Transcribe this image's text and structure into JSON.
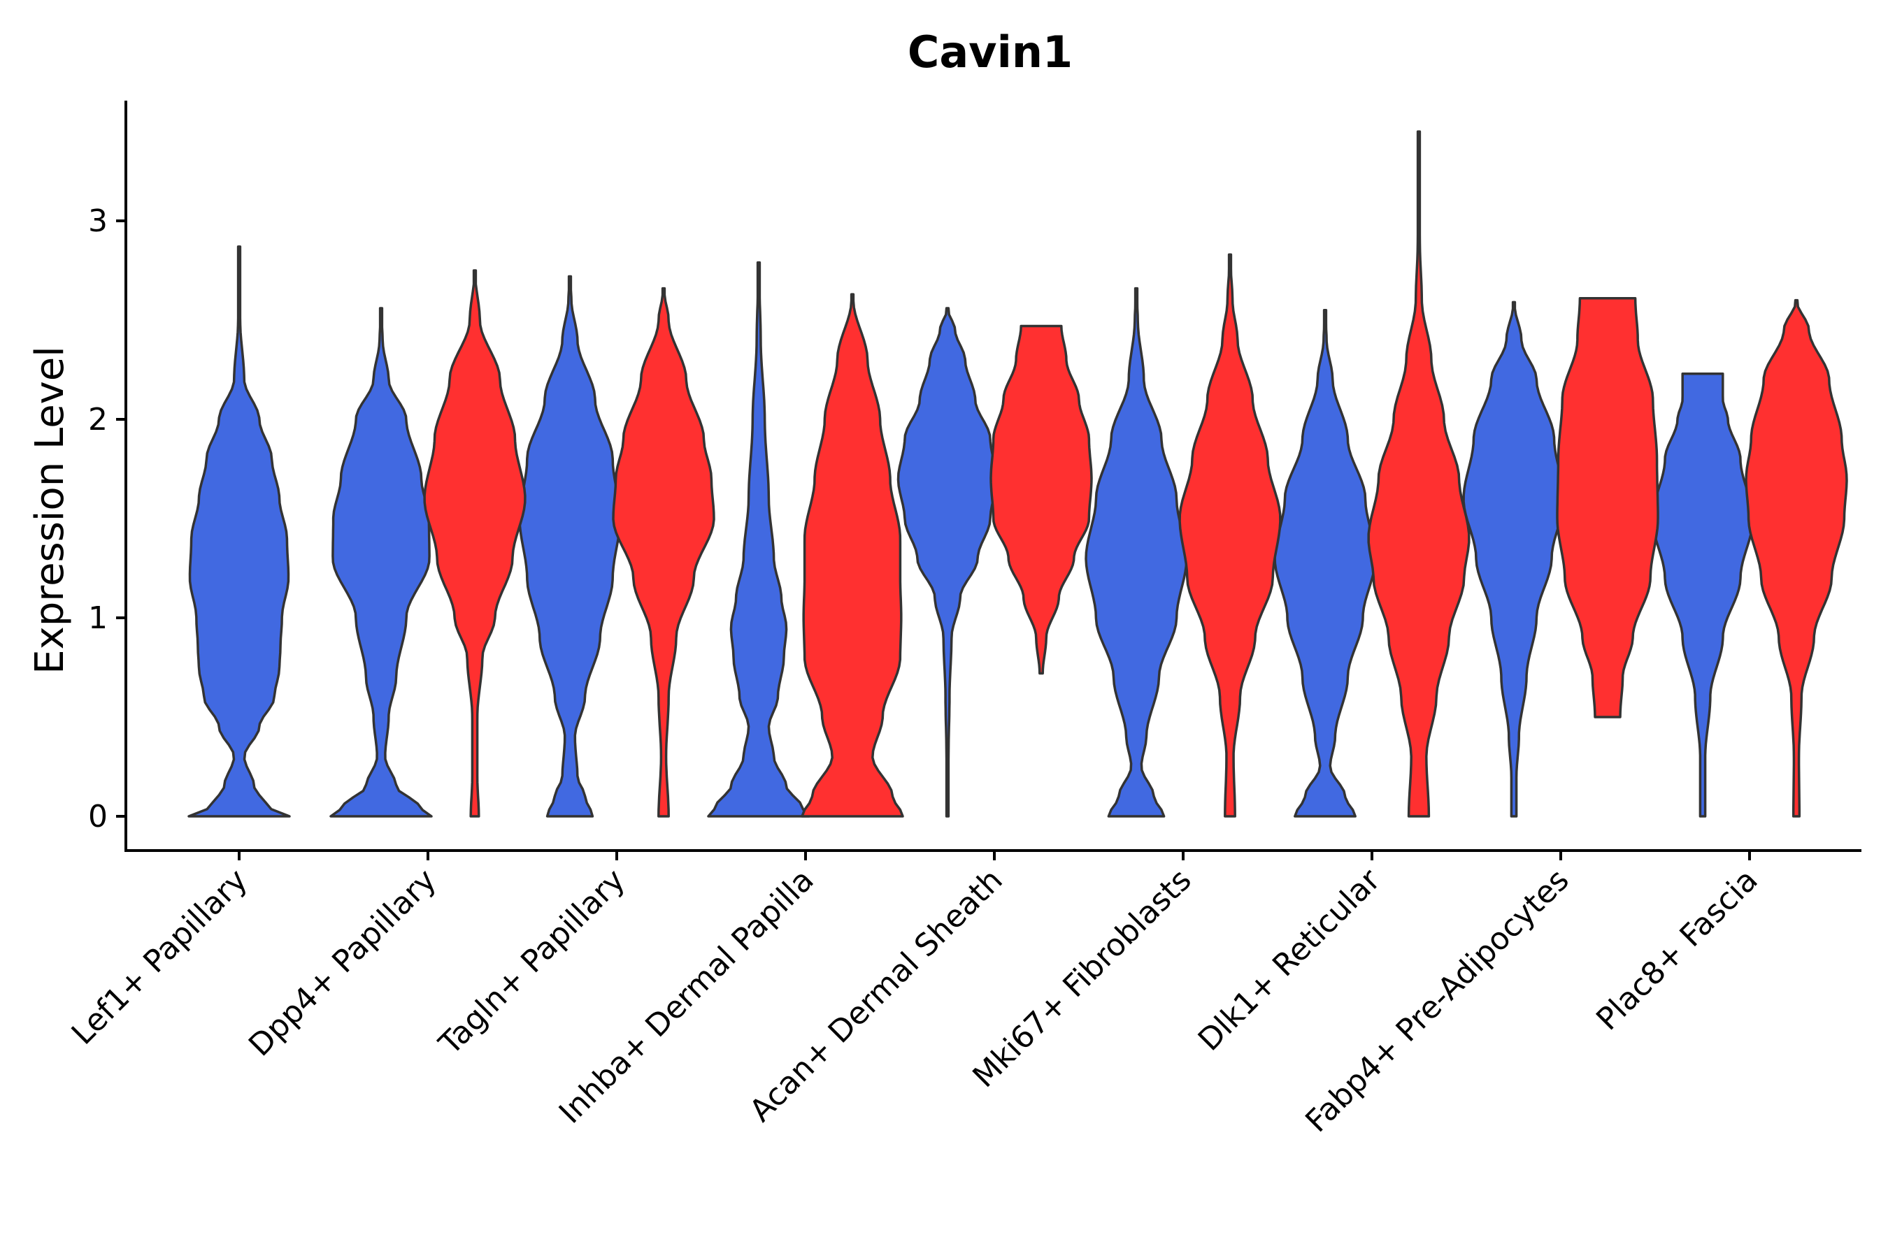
{
  "chart_data": {
    "type": "violin",
    "title": "Cavin1",
    "xlabel": "",
    "ylabel": "Expression Level",
    "ylim": [
      -0.17,
      3.6
    ],
    "yticks": [
      0,
      1,
      2,
      3
    ],
    "grid": false,
    "legend": "none",
    "categories": [
      "Lef1+ Papillary",
      "Dpp4+ Papillary",
      "Tagln+ Papillary",
      "Inhba+ Dermal Papilla",
      "Acan+ Dermal Sheath",
      "Mki67+ Fibroblasts",
      "Dlk1+ Reticular",
      "Fabp4+ Pre-Adipocytes",
      "Plac8+ Fascia"
    ],
    "series": [
      {
        "name": "group1",
        "color": "#4169E1",
        "violins": [
          {
            "category": "Lef1+ Papillary",
            "min": 0,
            "max": 2.87,
            "profile": [
              [
                0,
                1.0
              ],
              [
                0.05,
                0.55
              ],
              [
                0.15,
                0.3
              ],
              [
                0.3,
                0.1
              ],
              [
                0.45,
                0.4
              ],
              [
                0.6,
                0.7
              ],
              [
                0.75,
                0.8
              ],
              [
                0.85,
                0.82
              ],
              [
                1.0,
                0.85
              ],
              [
                1.2,
                0.98
              ],
              [
                1.4,
                0.95
              ],
              [
                1.6,
                0.8
              ],
              [
                1.8,
                0.65
              ],
              [
                2.0,
                0.4
              ],
              [
                2.2,
                0.1
              ],
              [
                2.5,
                0.02
              ],
              [
                2.87,
                0.0
              ]
            ]
          },
          {
            "category": "Dpp4+ Papillary",
            "min": 0,
            "max": 2.56,
            "profile": [
              [
                0,
                1.0
              ],
              [
                0.05,
                0.75
              ],
              [
                0.15,
                0.3
              ],
              [
                0.3,
                0.08
              ],
              [
                0.5,
                0.15
              ],
              [
                0.7,
                0.3
              ],
              [
                1.0,
                0.5
              ],
              [
                1.3,
                0.96
              ],
              [
                1.5,
                0.95
              ],
              [
                1.7,
                0.8
              ],
              [
                2.0,
                0.5
              ],
              [
                2.2,
                0.15
              ],
              [
                2.4,
                0.03
              ],
              [
                2.56,
                0.0
              ]
            ]
          },
          {
            "category": "Tagln+ Papillary",
            "min": 0,
            "max": 2.72,
            "profile": [
              [
                0,
                0.45
              ],
              [
                0.1,
                0.3
              ],
              [
                0.2,
                0.15
              ],
              [
                0.4,
                0.1
              ],
              [
                0.6,
                0.3
              ],
              [
                0.9,
                0.6
              ],
              [
                1.2,
                0.85
              ],
              [
                1.5,
                1.0
              ],
              [
                1.8,
                0.85
              ],
              [
                2.1,
                0.5
              ],
              [
                2.4,
                0.15
              ],
              [
                2.6,
                0.03
              ],
              [
                2.72,
                0.0
              ]
            ]
          },
          {
            "category": "Inhba+ Dermal Papilla",
            "min": 0,
            "max": 2.79,
            "profile": [
              [
                0,
                1.0
              ],
              [
                0.05,
                0.85
              ],
              [
                0.15,
                0.55
              ],
              [
                0.3,
                0.3
              ],
              [
                0.45,
                0.2
              ],
              [
                0.6,
                0.38
              ],
              [
                0.8,
                0.5
              ],
              [
                0.95,
                0.55
              ],
              [
                1.1,
                0.45
              ],
              [
                1.3,
                0.3
              ],
              [
                1.6,
                0.2
              ],
              [
                2.0,
                0.12
              ],
              [
                2.4,
                0.04
              ],
              [
                2.79,
                0.0
              ]
            ]
          },
          {
            "category": "Acan+ Dermal Sheath",
            "min": 0,
            "max": 2.56,
            "profile": [
              [
                0,
                0.02
              ],
              [
                0.3,
                0.02
              ],
              [
                0.6,
                0.04
              ],
              [
                0.9,
                0.08
              ],
              [
                1.1,
                0.25
              ],
              [
                1.3,
                0.6
              ],
              [
                1.5,
                0.85
              ],
              [
                1.7,
                0.98
              ],
              [
                1.9,
                0.85
              ],
              [
                2.1,
                0.55
              ],
              [
                2.3,
                0.35
              ],
              [
                2.45,
                0.15
              ],
              [
                2.56,
                0.0
              ]
            ]
          },
          {
            "category": "Mki67+ Fibroblasts",
            "min": 0,
            "max": 2.66,
            "profile": [
              [
                0,
                0.55
              ],
              [
                0.1,
                0.35
              ],
              [
                0.25,
                0.1
              ],
              [
                0.4,
                0.2
              ],
              [
                0.7,
                0.45
              ],
              [
                1.0,
                0.8
              ],
              [
                1.3,
                1.0
              ],
              [
                1.6,
                0.8
              ],
              [
                1.9,
                0.5
              ],
              [
                2.2,
                0.15
              ],
              [
                2.5,
                0.03
              ],
              [
                2.66,
                0.0
              ]
            ]
          },
          {
            "category": "Dlk1+ Reticular",
            "min": 0,
            "max": 2.55,
            "profile": [
              [
                0,
                0.6
              ],
              [
                0.1,
                0.4
              ],
              [
                0.25,
                0.1
              ],
              [
                0.4,
                0.2
              ],
              [
                0.7,
                0.45
              ],
              [
                1.0,
                0.75
              ],
              [
                1.3,
                1.0
              ],
              [
                1.6,
                0.8
              ],
              [
                1.9,
                0.45
              ],
              [
                2.2,
                0.15
              ],
              [
                2.4,
                0.03
              ],
              [
                2.55,
                0.0
              ]
            ]
          },
          {
            "category": "Fabp4+ Pre-Adipocytes",
            "min": 0,
            "max": 2.59,
            "profile": [
              [
                0,
                0.05
              ],
              [
                0.2,
                0.05
              ],
              [
                0.4,
                0.1
              ],
              [
                0.7,
                0.25
              ],
              [
                1.0,
                0.45
              ],
              [
                1.3,
                0.75
              ],
              [
                1.6,
                1.0
              ],
              [
                1.9,
                0.8
              ],
              [
                2.2,
                0.45
              ],
              [
                2.4,
                0.15
              ],
              [
                2.59,
                0.0
              ]
            ]
          },
          {
            "category": "Plac8+ Fascia",
            "min": 0,
            "max": 2.23,
            "profile": [
              [
                0,
                0.05
              ],
              [
                0.3,
                0.05
              ],
              [
                0.6,
                0.15
              ],
              [
                0.9,
                0.4
              ],
              [
                1.2,
                0.75
              ],
              [
                1.5,
                1.0
              ],
              [
                1.8,
                0.75
              ],
              [
                2.0,
                0.5
              ],
              [
                2.1,
                0.4
              ],
              [
                2.23,
                0.4
              ]
            ]
          }
        ]
      },
      {
        "name": "group2",
        "color": "#FF3030",
        "violins": [
          {
            "category": "Dpp4+ Papillary",
            "min": 0,
            "max": 2.75,
            "profile": [
              [
                0,
                0.08
              ],
              [
                0.2,
                0.05
              ],
              [
                0.5,
                0.05
              ],
              [
                0.8,
                0.15
              ],
              [
                1.0,
                0.4
              ],
              [
                1.3,
                0.75
              ],
              [
                1.6,
                1.0
              ],
              [
                1.9,
                0.8
              ],
              [
                2.2,
                0.5
              ],
              [
                2.5,
                0.1
              ],
              [
                2.75,
                0.0
              ]
            ]
          },
          {
            "category": "Tagln+ Papillary",
            "min": 0,
            "max": 2.66,
            "profile": [
              [
                0,
                0.1
              ],
              [
                0.3,
                0.05
              ],
              [
                0.6,
                0.1
              ],
              [
                0.9,
                0.25
              ],
              [
                1.2,
                0.6
              ],
              [
                1.5,
                1.0
              ],
              [
                1.7,
                0.95
              ],
              [
                1.9,
                0.8
              ],
              [
                2.2,
                0.45
              ],
              [
                2.5,
                0.1
              ],
              [
                2.66,
                0.0
              ]
            ]
          },
          {
            "category": "Inhba+ Dermal Papilla",
            "min": 0,
            "max": 2.63,
            "profile": [
              [
                0,
                1.0
              ],
              [
                0.1,
                0.8
              ],
              [
                0.3,
                0.4
              ],
              [
                0.5,
                0.6
              ],
              [
                0.8,
                0.95
              ],
              [
                1.0,
                0.97
              ],
              [
                1.2,
                0.95
              ],
              [
                1.4,
                0.95
              ],
              [
                1.7,
                0.75
              ],
              [
                2.0,
                0.55
              ],
              [
                2.3,
                0.3
              ],
              [
                2.6,
                0.02
              ],
              [
                2.63,
                0.0
              ]
            ]
          },
          {
            "category": "Acan+ Dermal Sheath",
            "min": 0.72,
            "max": 2.47,
            "profile": [
              [
                0.72,
                0.03
              ],
              [
                0.9,
                0.1
              ],
              [
                1.1,
                0.35
              ],
              [
                1.3,
                0.65
              ],
              [
                1.5,
                0.95
              ],
              [
                1.7,
                1.0
              ],
              [
                1.9,
                0.95
              ],
              [
                2.1,
                0.75
              ],
              [
                2.3,
                0.5
              ],
              [
                2.47,
                0.4
              ]
            ]
          },
          {
            "category": "Mki67+ Fibroblasts",
            "min": 0,
            "max": 2.83,
            "profile": [
              [
                0,
                0.1
              ],
              [
                0.3,
                0.07
              ],
              [
                0.6,
                0.2
              ],
              [
                0.9,
                0.5
              ],
              [
                1.2,
                0.85
              ],
              [
                1.5,
                1.0
              ],
              [
                1.8,
                0.75
              ],
              [
                2.1,
                0.45
              ],
              [
                2.4,
                0.15
              ],
              [
                2.6,
                0.05
              ],
              [
                2.83,
                0.0
              ]
            ]
          },
          {
            "category": "Dlk1+ Reticular",
            "min": 0,
            "max": 3.45,
            "profile": [
              [
                0,
                0.2
              ],
              [
                0.3,
                0.15
              ],
              [
                0.6,
                0.35
              ],
              [
                0.9,
                0.6
              ],
              [
                1.2,
                0.9
              ],
              [
                1.4,
                1.0
              ],
              [
                1.7,
                0.8
              ],
              [
                2.0,
                0.5
              ],
              [
                2.3,
                0.25
              ],
              [
                2.6,
                0.06
              ],
              [
                2.9,
                0.02
              ],
              [
                3.45,
                0.0
              ]
            ]
          },
          {
            "category": "Fabp4+ Pre-Adipocytes",
            "min": 0.5,
            "max": 2.61,
            "profile": [
              [
                0.5,
                0.25
              ],
              [
                0.7,
                0.3
              ],
              [
                0.9,
                0.5
              ],
              [
                1.2,
                0.85
              ],
              [
                1.5,
                1.0
              ],
              [
                1.8,
                0.98
              ],
              [
                2.1,
                0.9
              ],
              [
                2.4,
                0.6
              ],
              [
                2.61,
                0.55
              ]
            ]
          },
          {
            "category": "Plac8+ Fascia",
            "min": 0,
            "max": 2.6,
            "profile": [
              [
                0,
                0.06
              ],
              [
                0.3,
                0.05
              ],
              [
                0.6,
                0.1
              ],
              [
                0.9,
                0.35
              ],
              [
                1.2,
                0.7
              ],
              [
                1.5,
                0.95
              ],
              [
                1.7,
                1.0
              ],
              [
                1.9,
                0.9
              ],
              [
                2.2,
                0.65
              ],
              [
                2.45,
                0.25
              ],
              [
                2.6,
                0.0
              ]
            ]
          }
        ]
      }
    ]
  }
}
